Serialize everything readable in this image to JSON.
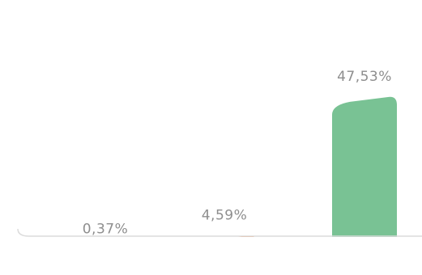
{
  "chart_data": {
    "type": "bar",
    "categories": [
      "",
      "",
      ""
    ],
    "values": [
      0.37,
      4.59,
      47.53
    ],
    "data_labels": [
      "0,37%",
      "4,59%",
      "47,53%"
    ],
    "bar_colors": [
      "#3f5f80",
      "#f39a63",
      "#79c294"
    ],
    "axis_color": "#dcdcdc",
    "ylim": [
      0,
      50
    ],
    "grid": false,
    "legend": "none",
    "title": "",
    "xlabel": "",
    "ylabel": ""
  }
}
